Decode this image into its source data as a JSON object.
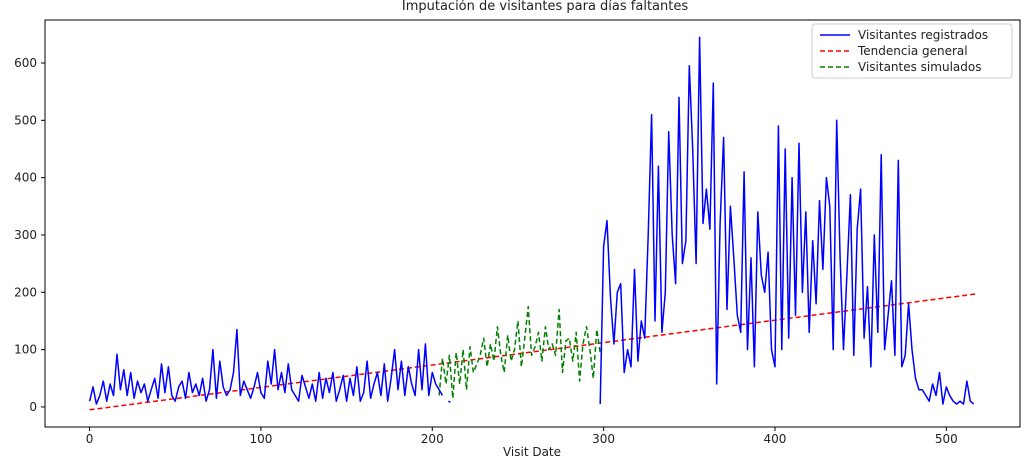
{
  "chart_data": {
    "type": "line",
    "title": "Imputación de visitantes para días faltantes",
    "xlabel": "Visit Date",
    "ylabel": "",
    "xlim": [
      -26,
      543
    ],
    "ylim": [
      -35,
      675
    ],
    "x_ticks": [
      0,
      100,
      200,
      300,
      400,
      500
    ],
    "y_ticks": [
      0,
      100,
      200,
      300,
      400,
      500,
      600
    ],
    "grid": false,
    "legend_position": "top-right",
    "series": [
      {
        "name": "Visitantes registrados",
        "color": "#0000ff",
        "style": "solid",
        "segments": [
          {
            "x": [
              0,
              2,
              4,
              6,
              8,
              10,
              12,
              14,
              16,
              18,
              20,
              22,
              24,
              26,
              28,
              30,
              32,
              34,
              36,
              38,
              40,
              42,
              44,
              46,
              48,
              50,
              52,
              54,
              56,
              58,
              60,
              62,
              64,
              66,
              68,
              70,
              72,
              74,
              76,
              78,
              80,
              82,
              84,
              86,
              88,
              90,
              92,
              94,
              96,
              98,
              100,
              102,
              104,
              106,
              108,
              110,
              112,
              114,
              116,
              118,
              120,
              122,
              124,
              126,
              128,
              130,
              132,
              134,
              136,
              138,
              140,
              142,
              144,
              146,
              148,
              150,
              152,
              154,
              156,
              158,
              160,
              162,
              164,
              166,
              168,
              170,
              172,
              174,
              176,
              178,
              180,
              182,
              184,
              186,
              188,
              190,
              192,
              194,
              196,
              198,
              200,
              202,
              204,
              206
            ],
            "y": [
              10,
              35,
              5,
              20,
              45,
              10,
              40,
              20,
              92,
              30,
              65,
              20,
              60,
              15,
              45,
              25,
              40,
              10,
              30,
              50,
              15,
              75,
              25,
              70,
              20,
              10,
              35,
              45,
              15,
              60,
              25,
              40,
              20,
              50,
              10,
              30,
              100,
              15,
              80,
              35,
              20,
              30,
              60,
              135,
              20,
              45,
              30,
              15,
              35,
              60,
              25,
              15,
              80,
              40,
              100,
              30,
              60,
              25,
              75,
              30,
              20,
              10,
              55,
              35,
              15,
              40,
              10,
              60,
              15,
              50,
              25,
              60,
              10,
              30,
              55,
              10,
              50,
              20,
              70,
              10,
              25,
              80,
              15,
              40,
              60,
              20,
              75,
              10,
              50,
              100,
              30,
              80,
              20,
              70,
              40,
              20,
              100,
              30,
              110,
              20,
              60,
              40,
              30,
              20
            ]
          },
          {
            "x": [
              210
            ],
            "y": [
              10
            ]
          },
          {
            "x": [
              298,
              300,
              302,
              304,
              306,
              308,
              310,
              312,
              314,
              316,
              318,
              320,
              322,
              324,
              326,
              328,
              330,
              332,
              334,
              336,
              338,
              340,
              342,
              344,
              346,
              348,
              350,
              352,
              354,
              356,
              358,
              360,
              362,
              364,
              366,
              368,
              370,
              372,
              374,
              376,
              378,
              380,
              382,
              384,
              386,
              388,
              390,
              392,
              394,
              396,
              398,
              400,
              402,
              404,
              406,
              408,
              410,
              412,
              414,
              416,
              418,
              420,
              422,
              424,
              426,
              428,
              430,
              432,
              434,
              436,
              438,
              440,
              442,
              444,
              446,
              448,
              450,
              452,
              454,
              456,
              458,
              460,
              462,
              464,
              466,
              468,
              470,
              472,
              474,
              476,
              478,
              480,
              482,
              484,
              486,
              488,
              490,
              492,
              494,
              496,
              498,
              500,
              502,
              504,
              506,
              508,
              510,
              512,
              514,
              516
            ],
            "y": [
              5,
              280,
              325,
              190,
              110,
              200,
              215,
              60,
              100,
              70,
              240,
              80,
              150,
              120,
              300,
              510,
              150,
              420,
              130,
              200,
              480,
              300,
              215,
              540,
              250,
              290,
              595,
              450,
              250,
              645,
              320,
              380,
              310,
              565,
              40,
              320,
              470,
              170,
              350,
              260,
              160,
              130,
              410,
              100,
              260,
              70,
              340,
              230,
              200,
              270,
              100,
              70,
              490,
              100,
              450,
              120,
              400,
              160,
              460,
              200,
              340,
              130,
              290,
              180,
              360,
              240,
              400,
              350,
              100,
              500,
              260,
              100,
              230,
              370,
              90,
              310,
              380,
              120,
              210,
              70,
              300,
              130,
              440,
              100,
              160,
              220,
              90,
              430,
              70,
              90,
              180,
              100,
              50,
              30,
              30,
              20,
              10,
              40,
              20,
              60,
              5,
              35,
              20,
              10,
              5,
              10,
              5,
              45,
              10,
              5
            ]
          }
        ]
      },
      {
        "name": "Tendencia general",
        "color": "#ff0000",
        "style": "dashed",
        "x": [
          0,
          517
        ],
        "y": [
          -5,
          197
        ]
      },
      {
        "name": "Visitantes simulados",
        "color": "#008000",
        "style": "dashed",
        "x": [
          204,
          206,
          208,
          210,
          212,
          214,
          216,
          218,
          220,
          222,
          224,
          226,
          228,
          230,
          232,
          234,
          236,
          238,
          240,
          242,
          244,
          246,
          248,
          250,
          252,
          254,
          256,
          258,
          260,
          262,
          264,
          266,
          268,
          270,
          272,
          274,
          276,
          278,
          280,
          282,
          284,
          286,
          288,
          290,
          292,
          294,
          296,
          298
        ],
        "y": [
          20,
          85,
          40,
          90,
          15,
          95,
          40,
          100,
          30,
          105,
          60,
          75,
          90,
          120,
          70,
          110,
          80,
          140,
          90,
          60,
          125,
          80,
          100,
          150,
          70,
          120,
          175,
          90,
          105,
          130,
          80,
          140,
          100,
          110,
          90,
          170,
          60,
          115,
          120,
          80,
          130,
          45,
          110,
          140,
          100,
          50,
          135,
          95
        ]
      }
    ]
  }
}
